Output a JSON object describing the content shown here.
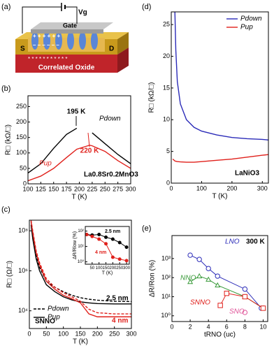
{
  "diagram": {
    "label": "(a)",
    "voltage": "Vg",
    "gate": "Gate",
    "source": "S",
    "drain": "D",
    "substrate": "Correlated Oxide"
  },
  "chart_data": [
    {
      "type": "line",
      "panel": "(b)",
      "xlabel": "T (K)",
      "ylabel": "R□ (kΩ/□)",
      "xlim": [
        100,
        300
      ],
      "xticks": [
        100,
        125,
        150,
        175,
        200,
        225,
        250,
        275,
        300
      ],
      "ylim": [
        0,
        285
      ],
      "yticks": [
        0,
        50,
        100,
        150,
        200,
        250
      ],
      "x": [
        100,
        125,
        150,
        175,
        195,
        220,
        225,
        250,
        275,
        300
      ],
      "series": [
        {
          "name": "Pdown",
          "color": "#000000",
          "values": [
            35,
            65,
            115,
            160,
            180,
            null,
            165,
            130,
            95,
            65
          ]
        },
        {
          "name": "Pup",
          "color": "#e0201b",
          "values": [
            10,
            25,
            50,
            85,
            112,
            125,
            123,
            105,
            75,
            50
          ]
        }
      ],
      "annotations": [
        "195 K",
        "220 K",
        "La0.8Sr0.2MnO3"
      ]
    },
    {
      "type": "line",
      "panel": "(c)",
      "xlabel": "T (K)",
      "ylabel": "R□ (Ω/□)",
      "ylog": true,
      "xlim": [
        0,
        300
      ],
      "xticks": [
        0,
        50,
        100,
        150,
        200,
        250,
        300
      ],
      "ylim": [
        1300,
        340000000
      ],
      "yticks": [
        {
          "value": 10000,
          "label": "10⁴"
        },
        {
          "value": 1000000,
          "label": "10⁶"
        },
        {
          "value": 100000000,
          "label": "10⁸"
        }
      ],
      "x": [
        5,
        10,
        20,
        30,
        50,
        75,
        100,
        125,
        150,
        175,
        200,
        250,
        300
      ],
      "series": [
        {
          "color": "#000000",
          "dash": true,
          "values": [
            300000000,
            60000000,
            6000000,
            1500000,
            300000,
            150000,
            90000,
            60000,
            45000,
            38000,
            34000,
            30000,
            29000
          ]
        },
        {
          "color": "#000000",
          "dash": false,
          "values": [
            200000000,
            40000000,
            4000000,
            1000000,
            200000,
            90000,
            50000,
            35000,
            28000,
            25000,
            23000,
            22000,
            22000
          ]
        },
        {
          "color": "#e0201b",
          "dash": true,
          "values": [
            340000000,
            100000000,
            10000000,
            2500000,
            400000,
            150000,
            80000,
            50000,
            30000,
            12000,
            8000,
            7000,
            7000
          ]
        },
        {
          "color": "#e0201b",
          "dash": false,
          "values": [
            300000000,
            80000000,
            8000000,
            2000000,
            300000,
            120000,
            60000,
            40000,
            25000,
            7000,
            5000,
            5000,
            5000
          ]
        }
      ],
      "legend": [
        {
          "name": "Pdown",
          "dash": true
        },
        {
          "name": "Pup",
          "dash": false
        }
      ],
      "annotations": [
        "2.5 nm",
        "4 nm",
        "SNNO"
      ]
    },
    {
      "type": "line",
      "inset": true,
      "markers": true,
      "xlabel": "T (K)",
      "ylabel": "ΔR/Rlow (%)",
      "ylog": true,
      "xlim": [
        0,
        320
      ],
      "xticks": [
        50,
        100,
        150,
        200,
        250,
        300
      ],
      "ylim": [
        0.7,
        200
      ],
      "yticks": [
        {
          "value": 1,
          "label": "10⁰"
        },
        {
          "value": 10,
          "label": "10¹"
        },
        {
          "value": 100,
          "label": "10²"
        }
      ],
      "x": [
        10,
        50,
        100,
        150,
        200,
        250,
        300
      ],
      "series": [
        {
          "color": "#000000",
          "marker": "circle",
          "values": [
            60,
            55,
            60,
            40,
            30,
            18,
            9
          ]
        },
        {
          "color": "#e0201b",
          "marker": "circle",
          "values": [
            60,
            45,
            30,
            15,
            2,
            1.5,
            1.2
          ]
        }
      ],
      "annotations": [
        "2.5 nm",
        "4 nm"
      ]
    },
    {
      "type": "line",
      "panel": "(d)",
      "xlabel": "T (K)",
      "ylabel": "R□ (kΩ/□)",
      "xlim": [
        0,
        320
      ],
      "xticks": [
        0,
        100,
        200,
        300
      ],
      "ylim": [
        0,
        27
      ],
      "yticks": [
        0,
        5,
        10,
        15,
        20,
        25
      ],
      "x": [
        5,
        12,
        15,
        20,
        30,
        50,
        75,
        100,
        150,
        200,
        250,
        300,
        320
      ],
      "series": [
        {
          "name": "Pdown",
          "color": "#2b2bb8",
          "values": [
            null,
            27,
            21,
            16,
            12.5,
            10,
            8.8,
            8.2,
            7.6,
            7.2,
            7,
            6.9,
            6.8
          ]
        },
        {
          "name": "Pup",
          "color": "#e0201b",
          "values": [
            3.8,
            3.5,
            3.45,
            3.4,
            3.35,
            3.3,
            3.3,
            3.4,
            3.6,
            3.8,
            4.1,
            4.4,
            4.5
          ]
        }
      ],
      "legend_loc": "upper right",
      "annotations": [
        "LaNiO3"
      ]
    },
    {
      "type": "line",
      "panel": "(e)",
      "markers": true,
      "xlabel": "tRNO (uc)",
      "ylabel": "ΔR/Ron (%)",
      "ylog": true,
      "xlim": [
        0,
        10.5
      ],
      "xticks": [
        0,
        2,
        4,
        6,
        8,
        10
      ],
      "ylim": [
        0.5,
        16000
      ],
      "yticks": [
        {
          "value": 1,
          "label": "10⁰"
        },
        {
          "value": 10,
          "label": "10¹"
        },
        {
          "value": 100,
          "label": "10²"
        },
        {
          "value": 1000,
          "label": "10³"
        }
      ],
      "series": [
        {
          "name": "LNO",
          "color": "#2b2bb8",
          "marker": "circle",
          "x": [
            2,
            3,
            4,
            5,
            8,
            9.8
          ],
          "values": [
            1500,
            900,
            300,
            120,
            25,
            2.5
          ]
        },
        {
          "name": "NNO",
          "color": "#3a9a3a",
          "marker": "triangle",
          "x": [
            2,
            3,
            4,
            5,
            8,
            10
          ],
          "values": [
            60,
            120,
            80,
            40,
            10,
            2.5
          ]
        },
        {
          "name": "SNNO",
          "color": "#e0201b",
          "marker": "square",
          "x": [
            5.3,
            6,
            8,
            10
          ],
          "values": [
            3.5,
            15,
            10,
            2.5
          ]
        },
        {
          "name": "SNO",
          "color": "#e0569a",
          "marker": "circle",
          "x": [
            8
          ],
          "values": [
            1.5
          ]
        }
      ],
      "annotations": [
        "300 K"
      ]
    }
  ]
}
